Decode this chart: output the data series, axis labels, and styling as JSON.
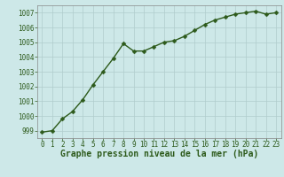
{
  "x": [
    0,
    1,
    2,
    3,
    4,
    5,
    6,
    7,
    8,
    9,
    10,
    11,
    12,
    13,
    14,
    15,
    16,
    17,
    18,
    19,
    20,
    21,
    22,
    23
  ],
  "y": [
    998.9,
    999.0,
    999.8,
    1000.3,
    1001.1,
    1002.1,
    1003.0,
    1003.9,
    1004.9,
    1004.4,
    1004.4,
    1004.7,
    1005.0,
    1005.1,
    1005.4,
    1005.8,
    1006.2,
    1006.5,
    1006.7,
    1006.9,
    1007.0,
    1007.1,
    1006.9,
    1007.0
  ],
  "ylim": [
    998.5,
    1007.5
  ],
  "yticks": [
    999,
    1000,
    1001,
    1002,
    1003,
    1004,
    1005,
    1006,
    1007
  ],
  "xticks": [
    0,
    1,
    2,
    3,
    4,
    5,
    6,
    7,
    8,
    9,
    10,
    11,
    12,
    13,
    14,
    15,
    16,
    17,
    18,
    19,
    20,
    21,
    22,
    23
  ],
  "line_color": "#2d5a1b",
  "marker_color": "#2d5a1b",
  "bg_color": "#cde8e8",
  "grid_color": "#b0cccc",
  "xlabel": "Graphe pression niveau de la mer (hPa)",
  "xlabel_fontsize": 7,
  "tick_fontsize": 5.5,
  "line_width": 1.0,
  "marker_size": 2.5
}
